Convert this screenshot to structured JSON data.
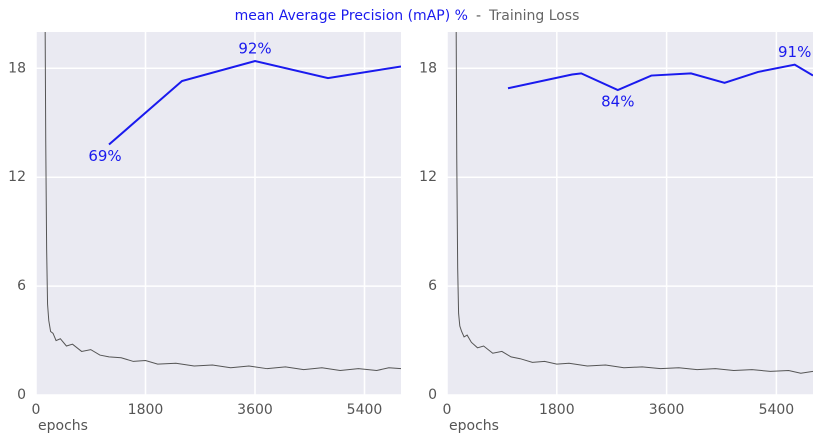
{
  "legend": {
    "items": [
      {
        "name": "mean Average Precision (mAP) %",
        "color": "#1a1aee"
      },
      {
        "name": "Training Loss",
        "color": "#666666"
      }
    ],
    "separator": "-"
  },
  "chart_data": [
    {
      "type": "line",
      "xlabel": "epochs",
      "xlim": [
        0,
        6000
      ],
      "xticks": [
        0,
        1800,
        3600,
        5400
      ],
      "ylim": [
        0,
        20
      ],
      "yticks": [
        0,
        6,
        12,
        18
      ],
      "y2lim": [
        0,
        100
      ],
      "grid": true,
      "series": [
        {
          "color": "#555555",
          "x": [
            150,
            160,
            175,
            190,
            210,
            240,
            280,
            330,
            400,
            500,
            600,
            750,
            900,
            1050,
            1200,
            1400,
            1600,
            1800,
            2000,
            2300,
            2600,
            2900,
            3200,
            3500,
            3800,
            4100,
            4400,
            4700,
            5000,
            5300,
            5600,
            5800,
            6000
          ],
          "values": [
            20.5,
            14,
            8,
            5,
            4.1,
            3.5,
            3.4,
            3.0,
            3.1,
            2.7,
            2.8,
            2.4,
            2.5,
            2.2,
            2.1,
            2.05,
            1.85,
            1.9,
            1.7,
            1.75,
            1.6,
            1.65,
            1.5,
            1.6,
            1.45,
            1.55,
            1.4,
            1.5,
            1.35,
            1.45,
            1.35,
            1.5,
            1.45
          ]
        },
        {
          "color": "#1a1aee",
          "axis": "y2",
          "x": [
            1200,
            2400,
            3600,
            4800,
            6000
          ],
          "values": [
            69,
            86.5,
            92,
            87.3,
            90.5
          ],
          "value_labels": [
            "69%",
            null,
            "92%",
            null,
            null
          ]
        }
      ]
    },
    {
      "type": "line",
      "xlabel": "epochs",
      "xlim": [
        0,
        6000
      ],
      "xticks": [
        0,
        1800,
        3600,
        5400
      ],
      "ylim": [
        0,
        20
      ],
      "yticks": [
        0,
        6,
        12,
        18
      ],
      "y2lim": [
        0,
        100
      ],
      "grid": true,
      "series": [
        {
          "color": "#555555",
          "x": [
            150,
            160,
            175,
            190,
            210,
            240,
            280,
            330,
            400,
            500,
            600,
            750,
            900,
            1050,
            1200,
            1400,
            1600,
            1800,
            2000,
            2300,
            2600,
            2900,
            3200,
            3500,
            3800,
            4100,
            4400,
            4700,
            5000,
            5300,
            5600,
            5800,
            6000
          ],
          "values": [
            20.5,
            13,
            7,
            4.5,
            3.8,
            3.5,
            3.2,
            3.3,
            2.9,
            2.6,
            2.7,
            2.3,
            2.4,
            2.1,
            2.0,
            1.8,
            1.85,
            1.7,
            1.75,
            1.6,
            1.65,
            1.5,
            1.55,
            1.45,
            1.5,
            1.4,
            1.45,
            1.35,
            1.4,
            1.3,
            1.35,
            1.2,
            1.3
          ]
        },
        {
          "color": "#1a1aee",
          "axis": "y2",
          "x": [
            1000,
            2050,
            2200,
            2800,
            3350,
            4000,
            4550,
            5100,
            5700,
            6000
          ],
          "values": [
            84.5,
            88.3,
            88.6,
            84,
            88,
            88.6,
            86,
            89,
            91,
            88
          ],
          "value_labels": [
            null,
            null,
            null,
            "84%",
            null,
            null,
            null,
            null,
            "91%",
            null
          ]
        }
      ]
    }
  ]
}
